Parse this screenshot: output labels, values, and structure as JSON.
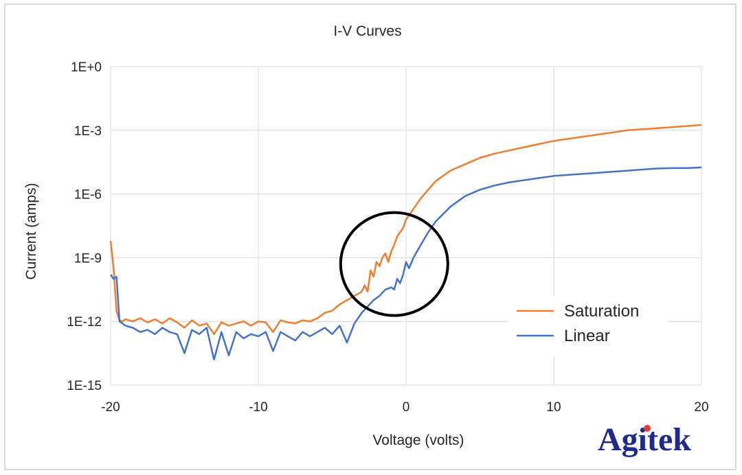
{
  "chart_data": {
    "type": "line",
    "title": "I-V Curves",
    "xlabel": "Voltage (volts)",
    "ylabel": "Current (amps)",
    "xlim": [
      -20,
      20
    ],
    "ylim_log10": [
      -15,
      0
    ],
    "x_ticks": [
      -20,
      -10,
      0,
      10,
      20
    ],
    "x_tick_labels": [
      "-20",
      "-10",
      "0",
      "10",
      "20"
    ],
    "y_ticks_log10": [
      0,
      -3,
      -6,
      -9,
      -12,
      -15
    ],
    "y_tick_labels": [
      "1E+0",
      "1E-3",
      "1E-6",
      "1E-9",
      "1E-12",
      "1E-15"
    ],
    "y_scale": "log",
    "grid": true,
    "legend_position": "bottom-right",
    "series": [
      {
        "name": "Saturation",
        "color": "#ed7d31",
        "x": [
          -20,
          -19.8,
          -19.6,
          -19.4,
          -19.2,
          -19,
          -18.5,
          -18,
          -17.5,
          -17,
          -16.5,
          -16,
          -15.5,
          -15,
          -14.5,
          -14,
          -13.5,
          -13,
          -12.5,
          -12,
          -11.5,
          -11,
          -10.5,
          -10,
          -9.5,
          -9,
          -8.5,
          -8,
          -7.5,
          -7,
          -6.5,
          -6,
          -5.5,
          -5,
          -4.5,
          -4,
          -3.5,
          -3,
          -2.8,
          -2.6,
          -2.4,
          -2.2,
          -2,
          -1.8,
          -1.6,
          -1.4,
          -1.2,
          -1,
          -0.8,
          -0.6,
          -0.4,
          -0.2,
          0,
          0.5,
          1,
          1.5,
          2,
          3,
          4,
          5,
          6,
          7,
          8,
          9,
          10,
          11,
          12,
          13,
          14,
          15,
          16,
          17,
          18,
          19,
          20
        ],
        "log10_current": [
          -8.2,
          -9.5,
          -11.5,
          -11.95,
          -12.0,
          -11.9,
          -12.0,
          -11.85,
          -12.05,
          -11.9,
          -12.1,
          -11.85,
          -12.05,
          -12.3,
          -11.95,
          -12.2,
          -12.1,
          -12.6,
          -12.05,
          -12.2,
          -12.1,
          -12.0,
          -12.2,
          -12.0,
          -12.05,
          -12.5,
          -11.95,
          -12.05,
          -12.1,
          -11.95,
          -12.0,
          -11.85,
          -11.6,
          -11.5,
          -11.2,
          -11.0,
          -10.8,
          -10.6,
          -10.3,
          -10.6,
          -9.6,
          -9.9,
          -9.2,
          -9.4,
          -9.0,
          -8.8,
          -9.2,
          -8.7,
          -8.4,
          -8.0,
          -7.8,
          -7.6,
          -7.2,
          -6.7,
          -6.2,
          -5.8,
          -5.4,
          -4.9,
          -4.6,
          -4.3,
          -4.1,
          -3.95,
          -3.8,
          -3.65,
          -3.5,
          -3.4,
          -3.3,
          -3.2,
          -3.1,
          -3.0,
          -2.95,
          -2.9,
          -2.85,
          -2.8,
          -2.75
        ]
      },
      {
        "name": "Linear",
        "color": "#4472c4",
        "x": [
          -20,
          -19.8,
          -19.6,
          -19.4,
          -19.2,
          -19,
          -18.5,
          -18,
          -17.5,
          -17,
          -16.5,
          -16,
          -15.5,
          -15,
          -14.5,
          -14,
          -13.5,
          -13,
          -12.5,
          -12,
          -11.5,
          -11,
          -10.5,
          -10,
          -9.5,
          -9,
          -8.5,
          -8,
          -7.5,
          -7,
          -6.5,
          -6,
          -5.5,
          -5,
          -4.5,
          -4,
          -3.5,
          -3,
          -2.6,
          -2.2,
          -1.8,
          -1.4,
          -1,
          -0.8,
          -0.6,
          -0.4,
          -0.2,
          0,
          0.2,
          0.5,
          1,
          1.5,
          2,
          3,
          4,
          5,
          6,
          7,
          8,
          9,
          10,
          11,
          12,
          13,
          14,
          15,
          16,
          17,
          18,
          19,
          20
        ],
        "log10_current": [
          -9.8,
          -10.0,
          -9.9,
          -12.0,
          -12.1,
          -12.2,
          -12.3,
          -12.5,
          -12.4,
          -12.6,
          -12.3,
          -12.5,
          -12.6,
          -13.5,
          -12.4,
          -12.6,
          -12.3,
          -13.8,
          -12.5,
          -13.6,
          -12.5,
          -12.8,
          -12.6,
          -12.7,
          -12.5,
          -13.4,
          -12.5,
          -12.7,
          -12.9,
          -12.5,
          -12.7,
          -12.5,
          -12.3,
          -12.6,
          -12.2,
          -13.0,
          -12.1,
          -11.6,
          -11.3,
          -11.0,
          -10.8,
          -10.5,
          -10.4,
          -10.5,
          -10.0,
          -10.2,
          -9.8,
          -9.2,
          -9.5,
          -9.0,
          -8.4,
          -7.8,
          -7.3,
          -6.6,
          -6.1,
          -5.8,
          -5.6,
          -5.45,
          -5.35,
          -5.25,
          -5.15,
          -5.1,
          -5.05,
          -5.0,
          -4.95,
          -4.9,
          -4.85,
          -4.8,
          -4.78,
          -4.78,
          -4.75
        ]
      }
    ],
    "annotations": [
      {
        "type": "circle",
        "center_x": -0.8,
        "center_log10": -9.3,
        "color": "#000000"
      }
    ]
  },
  "logo": {
    "text": "Agitek",
    "color": "#1f2a8c",
    "dot_color": "#e53935"
  }
}
